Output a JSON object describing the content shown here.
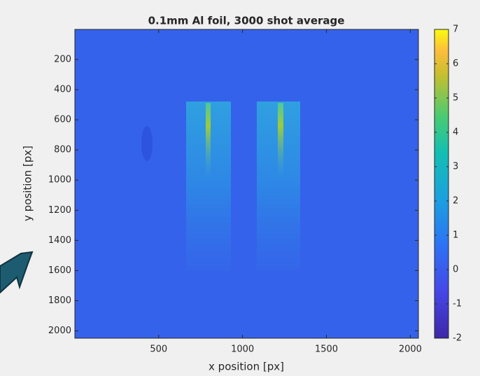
{
  "chart_data": {
    "type": "heatmap",
    "title": "0.1mm Al foil, 3000 shot average",
    "xlabel": "x position [px]",
    "ylabel": "y position [px]",
    "xlim": [
      0.5,
      2048.5
    ],
    "xticks": [
      500,
      1000,
      1500,
      2000
    ],
    "ylim": [
      0.5,
      2048.5
    ],
    "yticks": [
      200,
      400,
      600,
      800,
      1000,
      1200,
      1400,
      1600,
      1800,
      2000
    ],
    "y_reversed": true,
    "colormap": "parula",
    "clim": [
      -2,
      7
    ],
    "cticks": [
      -2,
      -1,
      0,
      1,
      2,
      3,
      4,
      5,
      6,
      7
    ]
  }
}
